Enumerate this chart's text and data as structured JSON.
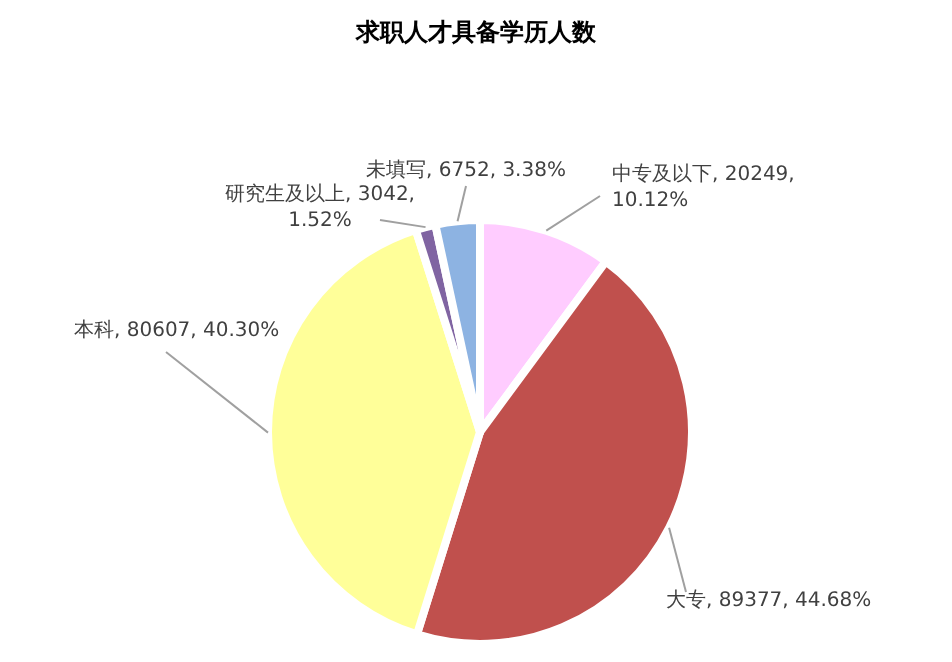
{
  "chart_data": {
    "type": "pie",
    "title": "求职人才具备学历人数",
    "categories": [
      "中专及以下",
      "大专",
      "本科",
      "研究生及以上",
      "未填写"
    ],
    "values": [
      20249,
      89377,
      80607,
      3042,
      6752
    ],
    "value_labels": [
      ", 20249, 10.12%",
      ", 89377, 44.68%",
      ", 80607, 40.30%",
      ", 3042, 1.52%",
      ", 6752, 3.38%"
    ],
    "colors": [
      "#ffccff",
      "#c0504d",
      "#ffff99",
      "#8064a2",
      "#8db3e2"
    ]
  }
}
